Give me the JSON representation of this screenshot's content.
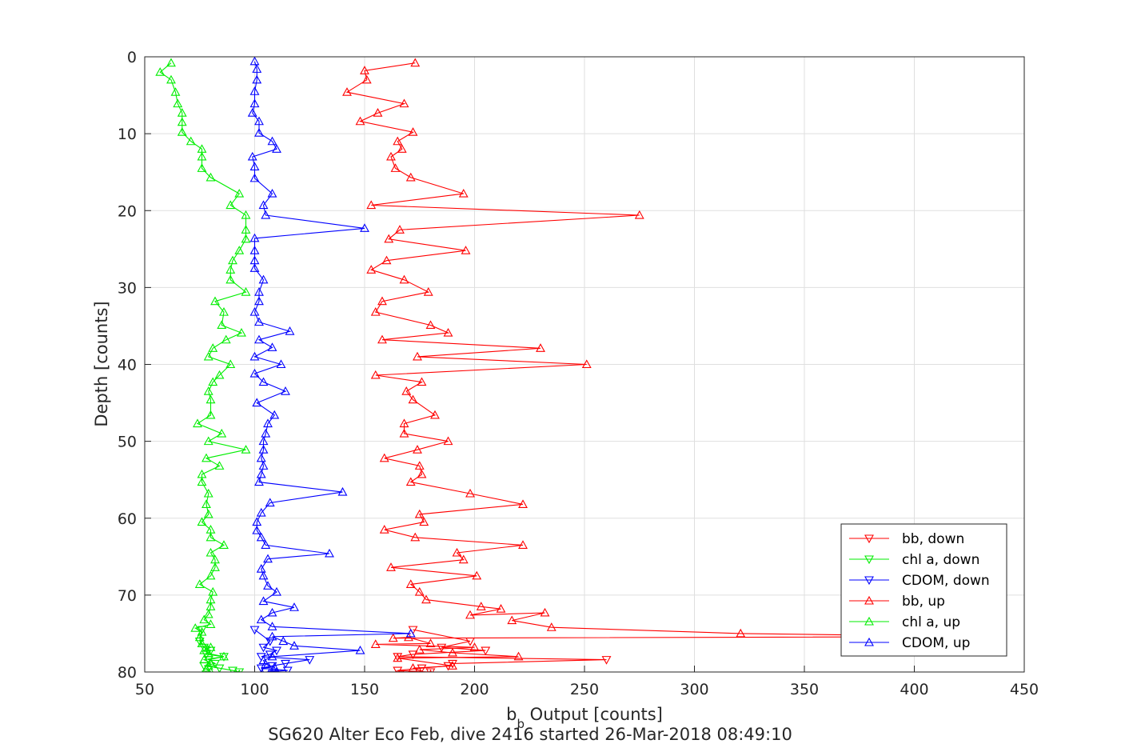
{
  "chart_data": {
    "type": "line",
    "xlabel": {
      "main": "b",
      "sub": "b",
      "rest": " Output [counts]"
    },
    "ylabel": "Depth [counts]",
    "caption": "SG620 Alter Eco Feb, dive 2416 started 26-Mar-2018 08:49:10",
    "xlim": [
      50,
      450
    ],
    "ylim": [
      0,
      80
    ],
    "y_reversed": true,
    "grid": true,
    "legend_position": "lower-right",
    "x_ticks": [
      50,
      100,
      150,
      200,
      250,
      300,
      350,
      400,
      450
    ],
    "y_ticks": [
      0,
      10,
      20,
      30,
      40,
      50,
      60,
      70,
      80
    ],
    "series": [
      {
        "name": "bb, down",
        "color": "#ff0000",
        "marker": "triangle-down",
        "x": [
          172,
          198,
          185,
          205,
          172,
          165,
          260,
          190,
          188,
          176,
          165,
          180,
          166
        ],
        "y": [
          74.5,
          76.0,
          76.8,
          77.2,
          77.7,
          78.0,
          78.4,
          78.9,
          79.2,
          79.5,
          79.8,
          80.0,
          80.3
        ]
      },
      {
        "name": "chl a, down",
        "color": "#00ee00",
        "marker": "triangle-down",
        "x": [
          76,
          75,
          77,
          80,
          78,
          86,
          79,
          82,
          77,
          84,
          90,
          93,
          78
        ],
        "y": [
          74.5,
          76.0,
          76.8,
          77.2,
          77.7,
          78.0,
          78.4,
          78.9,
          79.2,
          79.5,
          79.8,
          80.0,
          80.3
        ]
      },
      {
        "name": "CDOM, down",
        "color": "#0000ff",
        "marker": "triangle-down",
        "x": [
          100,
          107,
          104,
          110,
          107,
          103,
          125,
          114,
          108,
          103,
          115,
          105,
          108
        ],
        "y": [
          74.5,
          76.0,
          76.8,
          77.2,
          77.7,
          78.0,
          78.4,
          78.9,
          79.2,
          79.5,
          79.8,
          80.0,
          80.3
        ]
      },
      {
        "name": "bb, up",
        "color": "#ff0000",
        "marker": "triangle-up",
        "x": [
          173,
          150,
          151,
          142,
          168,
          156,
          148,
          172,
          165,
          167,
          162,
          164,
          171,
          195,
          153,
          275,
          166,
          161,
          196,
          160,
          153,
          168,
          179,
          158,
          155,
          180,
          188,
          158,
          230,
          174,
          251,
          155,
          176,
          169,
          172,
          182,
          168,
          168,
          188,
          174,
          159,
          175,
          176,
          171,
          198,
          222,
          175,
          177,
          159,
          173,
          222,
          192,
          195,
          162,
          201,
          171,
          175,
          178,
          203,
          212,
          198,
          232,
          217,
          235,
          321,
          430,
          163,
          170,
          180,
          155,
          200,
          175,
          190,
          220,
          165,
          190,
          172,
          180
        ],
        "y": [
          0.8,
          1.8,
          3.0,
          4.6,
          6.1,
          7.3,
          8.4,
          9.8,
          11.0,
          12.0,
          13.0,
          14.5,
          15.7,
          17.8,
          19.3,
          20.6,
          22.5,
          23.7,
          25.2,
          26.5,
          27.7,
          29.0,
          30.6,
          31.8,
          33.2,
          34.9,
          35.9,
          36.8,
          37.9,
          39.0,
          40.0,
          41.4,
          42.3,
          43.5,
          44.6,
          46.6,
          47.7,
          49.0,
          50.0,
          51.1,
          52.2,
          53.2,
          54.3,
          55.3,
          56.8,
          58.2,
          59.5,
          60.5,
          61.5,
          62.5,
          63.5,
          64.5,
          65.4,
          66.4,
          67.5,
          68.6,
          69.6,
          70.6,
          71.5,
          71.8,
          72.6,
          72.3,
          73.3,
          74.2,
          75.0,
          75.4,
          75.6,
          75.5,
          76.3,
          76.4,
          76.8,
          77.1,
          77.5,
          78.0,
          78.2,
          79.2,
          79.5,
          80.3
        ]
      },
      {
        "name": "chl a, up",
        "color": "#00ee00",
        "marker": "triangle-up",
        "x": [
          62,
          57,
          62,
          64,
          65,
          67,
          67,
          67,
          71,
          76,
          76,
          76,
          80,
          93,
          89,
          96,
          96,
          96,
          93,
          90,
          89,
          89,
          96,
          82,
          86,
          85,
          94,
          87,
          81,
          79,
          89,
          84,
          81,
          79,
          80,
          80,
          74,
          85,
          79,
          96,
          78,
          84,
          76,
          76,
          79,
          78,
          79,
          76,
          80,
          80,
          86,
          80,
          82,
          82,
          80,
          75,
          81,
          80,
          80,
          79,
          77,
          80,
          73,
          76,
          75,
          76,
          80,
          77,
          79,
          86,
          77,
          80,
          79,
          78,
          80,
          93,
          78
        ],
        "y": [
          0.8,
          2.0,
          3.0,
          4.6,
          6.1,
          7.3,
          8.5,
          9.8,
          11.0,
          12.0,
          13.0,
          14.5,
          15.7,
          17.8,
          19.3,
          20.6,
          22.5,
          23.7,
          25.2,
          26.5,
          27.7,
          29.0,
          30.6,
          31.8,
          33.2,
          34.9,
          35.9,
          36.8,
          37.9,
          39.0,
          40.0,
          41.4,
          42.3,
          43.5,
          44.6,
          46.6,
          47.7,
          49.0,
          50.0,
          51.1,
          52.2,
          53.2,
          54.3,
          55.3,
          56.8,
          58.2,
          59.5,
          60.5,
          61.5,
          62.5,
          63.5,
          64.5,
          65.4,
          66.4,
          67.5,
          68.6,
          69.6,
          70.6,
          71.5,
          72.5,
          73.2,
          73.8,
          74.3,
          74.8,
          75.5,
          76.3,
          76.8,
          77.2,
          77.6,
          78.0,
          78.4,
          78.8,
          79.2,
          79.6,
          80.0,
          80.3,
          80.5
        ]
      },
      {
        "name": "CDOM, up",
        "color": "#0000ff",
        "marker": "triangle-up",
        "x": [
          100,
          101,
          101,
          100,
          100,
          99,
          102,
          102,
          108,
          110,
          99,
          100,
          100,
          108,
          104,
          105,
          150,
          100,
          100,
          100,
          100,
          104,
          102,
          102,
          100,
          102,
          116,
          102,
          108,
          100,
          112,
          100,
          104,
          114,
          101,
          109,
          106,
          105,
          104,
          104,
          103,
          104,
          103,
          102,
          140,
          107,
          103,
          101,
          101,
          103,
          105,
          134,
          106,
          103,
          104,
          106,
          110,
          104,
          118,
          108,
          103,
          108,
          171,
          108,
          113,
          118,
          148,
          108,
          104,
          105,
          109,
          110,
          103
        ],
        "y": [
          0.6,
          1.6,
          3.0,
          4.5,
          6.1,
          7.3,
          8.4,
          9.9,
          11.0,
          12.0,
          13.0,
          14.3,
          15.8,
          17.8,
          19.3,
          20.6,
          22.3,
          23.6,
          25.2,
          26.5,
          27.5,
          29.0,
          30.6,
          31.8,
          33.2,
          34.5,
          35.7,
          36.8,
          37.8,
          39.0,
          40.0,
          41.2,
          42.3,
          43.5,
          45.0,
          46.6,
          47.7,
          49.0,
          50.0,
          51.1,
          52.2,
          53.2,
          54.3,
          55.3,
          56.6,
          58.0,
          59.3,
          60.5,
          61.6,
          62.5,
          63.5,
          64.6,
          65.3,
          66.6,
          67.5,
          68.8,
          69.6,
          70.8,
          71.6,
          72.3,
          73.2,
          74.1,
          75.0,
          75.4,
          76.0,
          76.6,
          77.2,
          78.0,
          78.5,
          79.0,
          79.4,
          80.0,
          80.4
        ]
      }
    ]
  }
}
